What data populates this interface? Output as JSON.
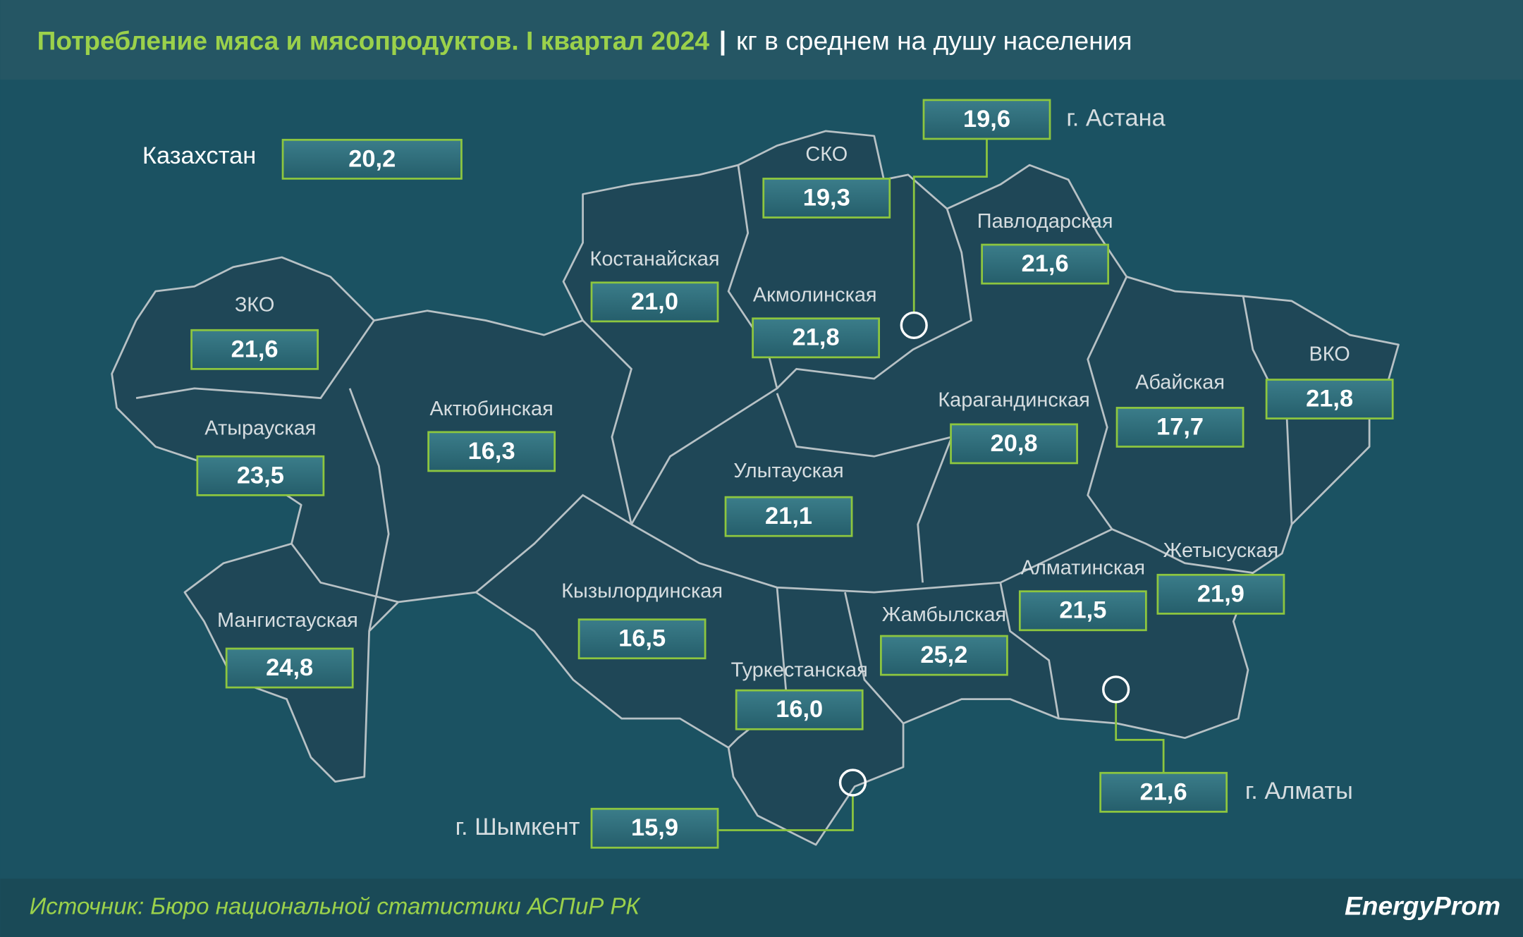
{
  "header": {
    "title": "Потребление мяса и мясопродуктов. I квартал 2024",
    "subtitle": "кг в среднем на душу населения"
  },
  "national": {
    "name": "Казахстан",
    "value": "20,2"
  },
  "regions": [
    {
      "name": "ЗКО",
      "value": "21,6"
    },
    {
      "name": "Атырауская",
      "value": "23,5"
    },
    {
      "name": "Актюбинская",
      "value": "16,3"
    },
    {
      "name": "Мангистауская",
      "value": "24,8"
    },
    {
      "name": "Костанайская",
      "value": "21,0"
    },
    {
      "name": "СКО",
      "value": "19,3"
    },
    {
      "name": "Акмолинская",
      "value": "21,8"
    },
    {
      "name": "Павлодарская",
      "value": "21,6"
    },
    {
      "name": "Карагандинская",
      "value": "20,8"
    },
    {
      "name": "Абайская",
      "value": "17,7"
    },
    {
      "name": "ВКО",
      "value": "21,8"
    },
    {
      "name": "Улытауская",
      "value": "21,1"
    },
    {
      "name": "Кызылординская",
      "value": "16,5"
    },
    {
      "name": "Жамбылская",
      "value": "25,2"
    },
    {
      "name": "Туркестанская",
      "value": "16,0"
    },
    {
      "name": "Алматинская",
      "value": "21,5"
    },
    {
      "name": "Жетысуская",
      "value": "21,9"
    }
  ],
  "cities": [
    {
      "name": "г. Астана",
      "value": "19,6"
    },
    {
      "name": "г. Алматы",
      "value": "21,6"
    },
    {
      "name": "г. Шымкент",
      "value": "15,9"
    }
  ],
  "footer": {
    "source": "Источник: Бюро национальной статистики АСПиР РК",
    "logo": "EnergyProm"
  }
}
